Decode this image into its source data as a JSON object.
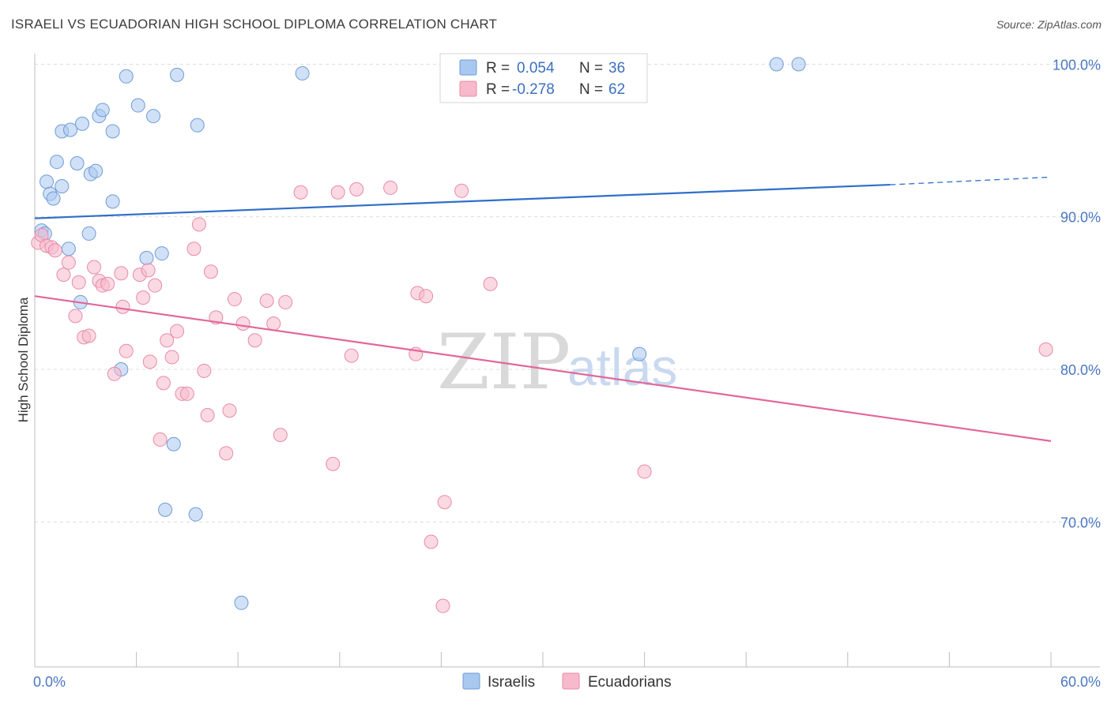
{
  "header": {
    "title": "ISRAELI VS ECUADORIAN HIGH SCHOOL DIPLOMA CORRELATION CHART",
    "source": "Source: ZipAtlas.com"
  },
  "watermark": {
    "zip": "ZIP",
    "atlas": "atlas"
  },
  "legend_top": {
    "rows": [
      {
        "r_label": "R =",
        "r_value": "0.054",
        "n_label": "N =",
        "n_value": "36",
        "color": "#a9c8f0"
      },
      {
        "r_label": "R =",
        "r_value": "-0.278",
        "n_label": "N =",
        "n_value": "62",
        "color": "#f7b9cc"
      }
    ]
  },
  "chart_data": {
    "type": "scatter",
    "title": "ISRAELI VS ECUADORIAN HIGH SCHOOL DIPLOMA CORRELATION CHART",
    "xlabel": "",
    "ylabel": "High School Diploma",
    "xlim": [
      0,
      60
    ],
    "ylim": [
      60.5,
      101
    ],
    "x_tick_labels": [
      {
        "value": 0,
        "label": "0.0%"
      },
      {
        "value": 60,
        "label": "60.0%"
      }
    ],
    "y_tick_labels": [
      {
        "value": 100,
        "label": "100.0%"
      },
      {
        "value": 90,
        "label": "90.0%"
      },
      {
        "value": 80,
        "label": "80.0%"
      },
      {
        "value": 70,
        "label": "70.0%"
      }
    ],
    "y_gridlines": [
      100,
      90,
      80,
      70
    ],
    "x_minor_ticks": [
      0,
      6,
      12,
      18,
      24,
      30,
      36,
      42,
      48,
      54,
      60
    ],
    "series": [
      {
        "name": "Israelis",
        "color": "#a9c8f0",
        "stroke": "#6f9ad6",
        "line_color": "#2f6fc9",
        "trend": {
          "x0": 0,
          "y0": 89.9,
          "x1": 50.5,
          "y1": 92.1,
          "dash_to_x": 60,
          "dash_to_y": 92.6
        },
        "points": [
          [
            0.4,
            89.1
          ],
          [
            0.6,
            88.9
          ],
          [
            0.7,
            92.3
          ],
          [
            0.9,
            91.5
          ],
          [
            1.1,
            91.2
          ],
          [
            1.3,
            93.6
          ],
          [
            1.6,
            92.0
          ],
          [
            1.6,
            95.6
          ],
          [
            2.1,
            95.7
          ],
          [
            2.0,
            87.9
          ],
          [
            2.5,
            93.5
          ],
          [
            2.8,
            96.1
          ],
          [
            3.2,
            88.9
          ],
          [
            3.3,
            92.8
          ],
          [
            3.6,
            93.0
          ],
          [
            3.8,
            96.6
          ],
          [
            4.0,
            97.0
          ],
          [
            2.7,
            84.4
          ],
          [
            4.6,
            91.0
          ],
          [
            4.6,
            95.6
          ],
          [
            5.1,
            80.0
          ],
          [
            5.4,
            99.2
          ],
          [
            6.1,
            97.3
          ],
          [
            6.6,
            87.3
          ],
          [
            7.0,
            96.6
          ],
          [
            7.5,
            87.6
          ],
          [
            7.7,
            70.8
          ],
          [
            8.2,
            75.1
          ],
          [
            8.4,
            99.3
          ],
          [
            9.5,
            70.5
          ],
          [
            9.6,
            96.0
          ],
          [
            12.2,
            64.7
          ],
          [
            15.8,
            99.4
          ],
          [
            35.7,
            81.0
          ],
          [
            43.8,
            100.0
          ],
          [
            45.1,
            100.0
          ]
        ]
      },
      {
        "name": "Ecuadorians",
        "color": "#f7b9cc",
        "stroke": "#e88aa9",
        "line_color": "#e2679a",
        "trend": {
          "x0": 0,
          "y0": 84.8,
          "x1": 60,
          "y1": 75.3
        },
        "points": [
          [
            0.2,
            88.3
          ],
          [
            0.4,
            88.8
          ],
          [
            0.7,
            88.1
          ],
          [
            1.0,
            88.0
          ],
          [
            1.2,
            87.8
          ],
          [
            1.7,
            86.2
          ],
          [
            2.0,
            87.0
          ],
          [
            2.4,
            83.5
          ],
          [
            2.6,
            85.7
          ],
          [
            2.9,
            82.1
          ],
          [
            3.2,
            82.2
          ],
          [
            3.5,
            86.7
          ],
          [
            3.8,
            85.8
          ],
          [
            4.0,
            85.5
          ],
          [
            4.3,
            85.6
          ],
          [
            4.7,
            79.7
          ],
          [
            5.1,
            86.3
          ],
          [
            5.2,
            84.1
          ],
          [
            5.4,
            81.2
          ],
          [
            6.2,
            86.2
          ],
          [
            6.4,
            84.7
          ],
          [
            6.7,
            86.5
          ],
          [
            6.8,
            80.5
          ],
          [
            7.1,
            85.5
          ],
          [
            7.4,
            75.4
          ],
          [
            7.6,
            79.1
          ],
          [
            7.8,
            81.9
          ],
          [
            8.1,
            80.8
          ],
          [
            8.4,
            82.5
          ],
          [
            8.7,
            78.4
          ],
          [
            9.0,
            78.4
          ],
          [
            9.4,
            87.9
          ],
          [
            9.7,
            89.5
          ],
          [
            10.0,
            79.9
          ],
          [
            10.2,
            77.0
          ],
          [
            10.4,
            86.4
          ],
          [
            10.7,
            83.4
          ],
          [
            11.3,
            74.5
          ],
          [
            11.5,
            77.3
          ],
          [
            11.8,
            84.6
          ],
          [
            12.3,
            83.0
          ],
          [
            13.0,
            81.9
          ],
          [
            13.7,
            84.5
          ],
          [
            14.1,
            83.0
          ],
          [
            14.5,
            75.7
          ],
          [
            14.8,
            84.4
          ],
          [
            15.7,
            91.6
          ],
          [
            17.6,
            73.8
          ],
          [
            17.9,
            91.6
          ],
          [
            18.7,
            80.9
          ],
          [
            19.0,
            91.8
          ],
          [
            21.0,
            91.9
          ],
          [
            22.5,
            81.0
          ],
          [
            22.6,
            85.0
          ],
          [
            23.1,
            84.8
          ],
          [
            23.4,
            68.7
          ],
          [
            24.2,
            71.3
          ],
          [
            24.1,
            64.5
          ],
          [
            25.2,
            91.7
          ],
          [
            26.9,
            85.6
          ],
          [
            36.0,
            73.3
          ],
          [
            59.7,
            81.3
          ]
        ]
      }
    ],
    "legend": {
      "position": "bottom-center",
      "entries": [
        "Israelis",
        "Ecuadorians"
      ]
    }
  }
}
